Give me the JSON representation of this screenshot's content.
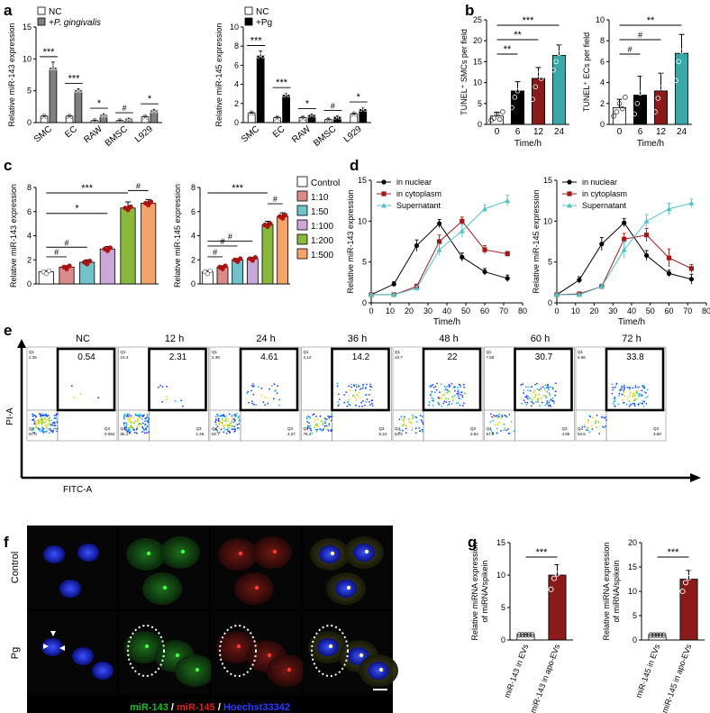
{
  "panel_labels": [
    "a",
    "b",
    "c",
    "d",
    "e",
    "f",
    "g"
  ],
  "colors": {
    "white_bar": "#ffffff",
    "gray_bar": "#808080",
    "black_bar": "#000000",
    "red_bar": "#8b1a1a",
    "teal_bar": "#3aa8a8",
    "c_control": "#ffffff",
    "c_1_10": "#d98a8a",
    "c_1_50": "#6fc3c9",
    "c_1_100": "#c9a7d6",
    "c_1_200": "#8ab83c",
    "c_1_500": "#f4a36b",
    "nuclear": "#000000",
    "cytoplasm": "#a01818",
    "supernatant": "#4fc3c8",
    "mir143_green": "#11c01a",
    "mir145_red": "#e0201a",
    "hoechst_blue": "#2c3cff"
  },
  "panel_a": {
    "legend_left": [
      "NC",
      "+P. gingivalis"
    ],
    "legend_right": [
      "NC",
      "+Pg"
    ],
    "ylabel_left": "Relative miR-143 expression",
    "ylabel_right": "Relative miR-145 expression"
  },
  "panel_b": {
    "ylabel_left": "TUNEL⁺ SMCs per field",
    "ylabel_right": "TUNEL⁺ ECs per field",
    "xlabel": "Time/h"
  },
  "panel_c": {
    "ylabel_left": "Relative miR-143 expression",
    "ylabel_right": "Relative miR-145 expression",
    "legend": [
      "Control",
      "1:10",
      "1:50",
      "1:100",
      "1:200",
      "1:500"
    ]
  },
  "panel_d": {
    "ylabel_left": "Relative miR-143 expression",
    "ylabel_right": "Relative miR-145 expression",
    "xlabel": "Time/h",
    "legend": [
      "in nuclear",
      "in cytoplasm",
      "Supernatant"
    ]
  },
  "panel_e": {
    "timepoints": [
      "NC",
      "12 h",
      "24 h",
      "36 h",
      "48 h",
      "60 h",
      "72 h"
    ],
    "q2_values": [
      "0.54",
      "2.31",
      "4.61",
      "14.2",
      "22",
      "30.7",
      "33.8"
    ],
    "q1_values": [
      "2.35",
      "10.4",
      "2.39",
      "4.14",
      "10.7",
      "7.50",
      "6.96"
    ],
    "q4_values": [
      "97.0",
      "86.1",
      "92.7",
      "76.4",
      "63.4",
      "57.0",
      "53.6"
    ],
    "q3_values": [
      "0.084",
      "1.26",
      "4.27",
      "5.24",
      "3.84",
      "4.85",
      "3.69"
    ],
    "q_names": [
      "Q1",
      "Q2",
      "Q3",
      "Q4"
    ],
    "yaxis": "PI-A",
    "xaxis": "FITC-A"
  },
  "panel_f": {
    "row_labels": [
      "Control",
      "Pg"
    ],
    "caption_parts": [
      "miR-143",
      " / ",
      "miR-145",
      " / ",
      "Hoechst33342"
    ]
  },
  "panel_g": {
    "ylabel": [
      "Relative miRNA expression",
      "of miRNA/spikein"
    ],
    "categories_left": [
      "miR-143 in EVs",
      "miR-143 in apo-EVs"
    ],
    "categories_right": [
      "miR-145 in EVs",
      "miR-145 in apo-EVs"
    ]
  },
  "chart_data": [
    {
      "panel": "a-left",
      "type": "bar",
      "categories": [
        "SMC",
        "EC",
        "RAW",
        "BMSC",
        "L929"
      ],
      "ylabel": "Relative miR-143 expression",
      "ylim": [
        0,
        15
      ],
      "yticks": [
        0,
        5,
        10,
        15
      ],
      "series": [
        {
          "name": "NC",
          "values": [
            1,
            1,
            0.3,
            0.3,
            0.9
          ],
          "errors": [
            0.1,
            0.1,
            0.1,
            0.1,
            0.1
          ]
        },
        {
          "name": "+P. gingivalis",
          "values": [
            8.6,
            5.1,
            1.2,
            0.6,
            1.9
          ],
          "errors": [
            0.9,
            0.2,
            0.2,
            0.1,
            0.2
          ]
        }
      ],
      "significance": [
        "***",
        "***",
        "*",
        "#",
        "*"
      ]
    },
    {
      "panel": "a-right",
      "type": "bar",
      "categories": [
        "SMC",
        "EC",
        "RAW",
        "BMSC",
        "L929"
      ],
      "ylabel": "Relative miR-145 expression",
      "ylim": [
        0,
        10
      ],
      "yticks": [
        0,
        2,
        4,
        6,
        8,
        10
      ],
      "series": [
        {
          "name": "NC",
          "values": [
            1,
            0.5,
            0.5,
            0.3,
            0.9
          ],
          "errors": [
            0.1,
            0.1,
            0.1,
            0.1,
            0.1
          ]
        },
        {
          "name": "+Pg",
          "values": [
            7,
            2.9,
            0.8,
            0.6,
            1.4
          ],
          "errors": [
            0.5,
            0.2,
            0.1,
            0.1,
            0.2
          ]
        }
      ],
      "significance": [
        "***",
        "***",
        "*",
        "#",
        "*"
      ]
    },
    {
      "panel": "b-left",
      "type": "bar",
      "categories": [
        "0",
        "6",
        "12",
        "24"
      ],
      "xlabel": "Time/h",
      "ylabel": "TUNEL⁺ SMCs per field",
      "ylim": [
        0,
        25
      ],
      "yticks": [
        0,
        5,
        10,
        15,
        20,
        25
      ],
      "values": [
        2,
        8,
        11,
        16.5
      ],
      "errors": [
        0.9,
        2.2,
        2.6,
        2.5
      ],
      "points": [
        [
          1,
          1.5,
          2.5,
          1.2,
          3
        ],
        [
          4,
          6.5,
          8,
          9.5,
          11
        ],
        [
          6,
          9,
          12,
          11,
          15
        ],
        [
          13,
          15,
          17,
          19,
          18.5
        ]
      ],
      "comparisons": [
        [
          "0",
          "6",
          "**"
        ],
        [
          "0",
          "12",
          "**"
        ],
        [
          "0",
          "24",
          "***"
        ]
      ]
    },
    {
      "panel": "b-right",
      "type": "bar",
      "categories": [
        "0",
        "6",
        "12",
        "24"
      ],
      "xlabel": "Time/h",
      "ylabel": "TUNEL⁺ ECs per field",
      "ylim": [
        0,
        10
      ],
      "yticks": [
        0,
        2,
        4,
        6,
        8,
        10
      ],
      "values": [
        1.6,
        2.8,
        3.2,
        6.8
      ],
      "errors": [
        0.8,
        1.8,
        1.7,
        1.8
      ],
      "points": [
        [
          0.8,
          1.2,
          2,
          1.5,
          2.6
        ],
        [
          1,
          2,
          3,
          4.8,
          3.2
        ],
        [
          1.2,
          2.5,
          3.5,
          4.9,
          3.9
        ],
        [
          4.2,
          6,
          7,
          9.2,
          7.5
        ]
      ],
      "comparisons": [
        [
          "0",
          "6",
          "#"
        ],
        [
          "0",
          "12",
          "#"
        ],
        [
          "0",
          "24",
          "**"
        ]
      ]
    },
    {
      "panel": "c-left",
      "type": "bar",
      "categories": [
        "Control",
        "1:10",
        "1:50",
        "1:100",
        "1:200",
        "1:500"
      ],
      "ylabel": "Relative miR-143 expression",
      "ylim": [
        0,
        8
      ],
      "yticks": [
        0,
        2,
        4,
        6,
        8
      ],
      "values": [
        1,
        1.4,
        1.8,
        2.9,
        6.3,
        6.7
      ],
      "errors": [
        0.1,
        0.1,
        0.2,
        0.2,
        0.5,
        0.3
      ],
      "comparisons": [
        [
          "Control",
          "1:10",
          "#"
        ],
        [
          "Control",
          "1:50",
          "#"
        ],
        [
          "Control",
          "1:100",
          "*"
        ],
        [
          "Control",
          "1:200",
          "***"
        ],
        [
          "1:200",
          "1:500",
          "#"
        ]
      ]
    },
    {
      "panel": "c-right",
      "type": "bar",
      "categories": [
        "Control",
        "1:10",
        "1:50",
        "1:100",
        "1:200",
        "1:500"
      ],
      "ylabel": "Relative miR-145 expression",
      "ylim": [
        0,
        8
      ],
      "yticks": [
        0,
        2,
        4,
        6,
        8
      ],
      "values": [
        1,
        1.4,
        2,
        2.1,
        4.9,
        5.6
      ],
      "errors": [
        0.1,
        0.1,
        0.1,
        0.1,
        0.3,
        0.3
      ],
      "comparisons": [
        [
          "Control",
          "1:10",
          "#"
        ],
        [
          "Control",
          "1:50",
          "#"
        ],
        [
          "Control",
          "1:100",
          "#"
        ],
        [
          "Control",
          "1:200",
          "***"
        ],
        [
          "1:200",
          "1:500",
          "#"
        ]
      ]
    },
    {
      "panel": "d-left",
      "type": "line",
      "x": [
        0,
        12,
        24,
        36,
        48,
        60,
        72
      ],
      "xlabel": "Time/h",
      "ylabel": "Relative miR-143 expression",
      "xlim": [
        0,
        80
      ],
      "ylim": [
        0,
        15
      ],
      "xticks": [
        0,
        10,
        20,
        30,
        40,
        50,
        60,
        70,
        80
      ],
      "yticks": [
        0,
        5,
        10,
        15
      ],
      "series": [
        {
          "name": "in nuclear",
          "values": [
            1,
            2.3,
            7,
            9.7,
            5.6,
            3.8,
            3
          ],
          "errors": [
            0.1,
            0.3,
            0.7,
            0.5,
            0.5,
            0.4,
            0.4
          ]
        },
        {
          "name": "in cytoplasm",
          "values": [
            1,
            1,
            2,
            7.5,
            10,
            6.5,
            6
          ],
          "errors": [
            0.1,
            0.1,
            0.3,
            0.8,
            0.5,
            0.5,
            0.3
          ]
        },
        {
          "name": "Supernatant",
          "values": [
            1,
            1,
            1.8,
            6.5,
            8.8,
            11.5,
            12.5
          ],
          "errors": [
            0.1,
            0.1,
            0.3,
            0.7,
            0.8,
            0.5,
            0.7
          ]
        }
      ]
    },
    {
      "panel": "d-right",
      "type": "line",
      "x": [
        0,
        12,
        24,
        36,
        48,
        60,
        72
      ],
      "xlabel": "Time/h",
      "ylabel": "Relative miR-145 expression",
      "xlim": [
        0,
        80
      ],
      "ylim": [
        0,
        15
      ],
      "xticks": [
        0,
        10,
        20,
        30,
        40,
        50,
        60,
        70,
        80
      ],
      "yticks": [
        0,
        5,
        10,
        15
      ],
      "series": [
        {
          "name": "in nuclear",
          "values": [
            1,
            2.8,
            7.2,
            9.8,
            5.8,
            3.6,
            2.9
          ],
          "errors": [
            0.1,
            0.4,
            0.8,
            0.5,
            0.6,
            0.4,
            0.6
          ]
        },
        {
          "name": "in cytoplasm",
          "values": [
            1,
            1.1,
            2,
            7.8,
            8.3,
            5.5,
            4.2
          ],
          "errors": [
            0.1,
            0.1,
            0.3,
            0.7,
            0.8,
            1.1,
            0.5
          ]
        },
        {
          "name": "Supernatant",
          "values": [
            1,
            1,
            2,
            6.5,
            10,
            11.5,
            12.2
          ],
          "errors": [
            0.1,
            0.1,
            0.3,
            1,
            0.8,
            0.7,
            0.5
          ]
        }
      ]
    },
    {
      "panel": "g-left",
      "type": "bar",
      "categories": [
        "miR-143 in EVs",
        "miR-143 in apo-EVs"
      ],
      "ylim": [
        0,
        15
      ],
      "yticks": [
        0,
        5,
        10,
        15
      ],
      "values": [
        0.8,
        10
      ],
      "errors": [
        0.05,
        1.6
      ],
      "points": [
        [
          0.8,
          0.8,
          0.8,
          0.8,
          0.8
        ],
        [
          7.8,
          9.5,
          10.2,
          11.3,
          12.7
        ]
      ],
      "comparisons": [
        [
          "miR-143 in EVs",
          "miR-143 in apo-EVs",
          "***"
        ]
      ]
    },
    {
      "panel": "g-right",
      "type": "bar",
      "categories": [
        "miR-145 in EVs",
        "miR-145 in apo-EVs"
      ],
      "ylim": [
        0,
        20
      ],
      "yticks": [
        0,
        5,
        10,
        15,
        20
      ],
      "values": [
        1,
        12.5
      ],
      "errors": [
        0.05,
        1.8
      ],
      "points": [
        [
          1,
          1,
          1,
          1,
          1
        ],
        [
          10,
          11.8,
          12.8,
          14,
          15
        ]
      ],
      "comparisons": [
        [
          "miR-145 in EVs",
          "miR-145 in apo-EVs",
          "***"
        ]
      ]
    }
  ]
}
